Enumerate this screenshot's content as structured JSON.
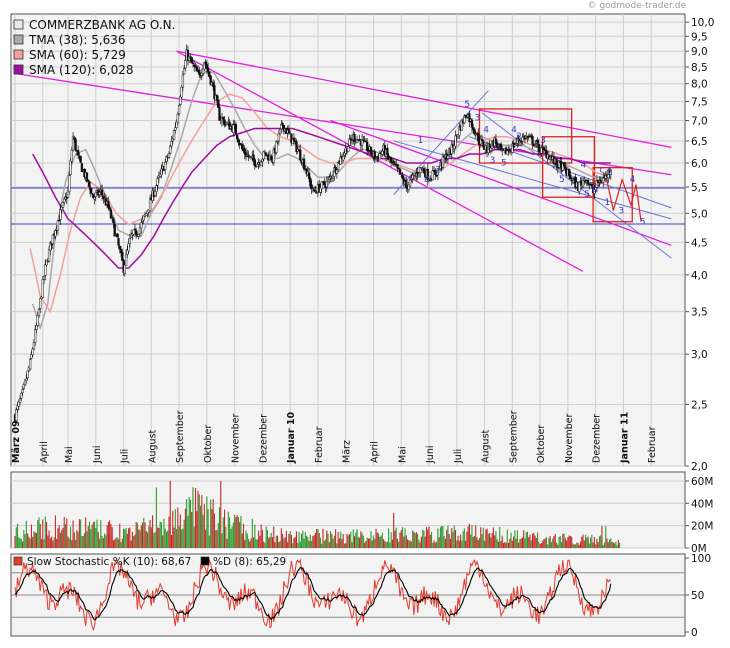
{
  "watermark": "© godmode-trader.de",
  "chart_data": [
    {
      "type": "candlestick",
      "title": "",
      "legend": [
        {
          "label": "COMMERZBANK AG O.N.",
          "swatch": "#e8e8e8"
        },
        {
          "label": "TMA (38): 5,636",
          "swatch": "#a9a9a9"
        },
        {
          "label": "SMA (60): 5,729",
          "swatch": "#f4a09a"
        },
        {
          "label": "SMA (120): 6,028",
          "swatch": "#9c0f9c"
        }
      ],
      "y_scale": "log",
      "ylim": [
        2.0,
        10.3
      ],
      "y_ticks": [
        "10,0",
        "9,5",
        "9,0",
        "8,5",
        "8,0",
        "7,5",
        "7,0",
        "6,5",
        "6,0",
        "5,5",
        "5,0",
        "4,5",
        "4,0",
        "3,5",
        "3,0",
        "2,5",
        "2,0"
      ],
      "y_tick_values": [
        10.0,
        9.5,
        9.0,
        8.5,
        8.0,
        7.5,
        7.0,
        6.5,
        6.0,
        5.5,
        5.0,
        4.5,
        4.0,
        3.5,
        3.0,
        2.5,
        2.0
      ],
      "x_labels": [
        "März 09",
        "April",
        "Mai",
        "Juni",
        "Juli",
        "August",
        "September",
        "Oktober",
        "November",
        "Dezember",
        "Januar 10",
        "Februar",
        "März",
        "April",
        "Mai",
        "Juni",
        "Juli",
        "August",
        "September",
        "Oktober",
        "November",
        "Dezember",
        "Januar 11",
        "Februar"
      ],
      "x_label_bold": [
        true,
        false,
        false,
        false,
        false,
        false,
        false,
        false,
        false,
        false,
        true,
        false,
        false,
        false,
        false,
        false,
        false,
        false,
        false,
        false,
        false,
        false,
        true,
        false
      ],
      "x_label_index": [
        0,
        22,
        42,
        64,
        86,
        108,
        130,
        152,
        174,
        196,
        218,
        240,
        262,
        284,
        306,
        328,
        350,
        372,
        394,
        416,
        438,
        460,
        482,
        504
      ],
      "close_path": [
        [
          0,
          2.4
        ],
        [
          6,
          2.6
        ],
        [
          12,
          2.9
        ],
        [
          18,
          3.4
        ],
        [
          24,
          4.1
        ],
        [
          30,
          4.6
        ],
        [
          36,
          5.0
        ],
        [
          42,
          5.4
        ],
        [
          46,
          6.6
        ],
        [
          50,
          6.1
        ],
        [
          56,
          5.7
        ],
        [
          62,
          5.3
        ],
        [
          68,
          5.4
        ],
        [
          74,
          5.1
        ],
        [
          80,
          4.6
        ],
        [
          86,
          4.1
        ],
        [
          92,
          4.6
        ],
        [
          98,
          4.7
        ],
        [
          104,
          5.0
        ],
        [
          110,
          5.4
        ],
        [
          116,
          5.8
        ],
        [
          122,
          6.2
        ],
        [
          128,
          7.0
        ],
        [
          132,
          8.0
        ],
        [
          136,
          8.9
        ],
        [
          140,
          8.6
        ],
        [
          146,
          8.2
        ],
        [
          150,
          8.7
        ],
        [
          156,
          8.0
        ],
        [
          162,
          7.1
        ],
        [
          168,
          6.9
        ],
        [
          174,
          6.8
        ],
        [
          180,
          6.3
        ],
        [
          186,
          6.1
        ],
        [
          192,
          6.0
        ],
        [
          198,
          6.2
        ],
        [
          204,
          6.1
        ],
        [
          212,
          6.9
        ],
        [
          218,
          6.6
        ],
        [
          224,
          6.3
        ],
        [
          230,
          5.9
        ],
        [
          236,
          5.4
        ],
        [
          242,
          5.5
        ],
        [
          248,
          5.6
        ],
        [
          254,
          5.9
        ],
        [
          262,
          6.3
        ],
        [
          268,
          6.6
        ],
        [
          274,
          6.5
        ],
        [
          280,
          6.3
        ],
        [
          286,
          6.1
        ],
        [
          292,
          6.3
        ],
        [
          298,
          6.0
        ],
        [
          304,
          5.8
        ],
        [
          310,
          5.5
        ],
        [
          316,
          5.7
        ],
        [
          322,
          5.9
        ],
        [
          328,
          5.7
        ],
        [
          334,
          5.8
        ],
        [
          340,
          6.1
        ],
        [
          346,
          6.3
        ],
        [
          352,
          6.8
        ],
        [
          358,
          7.2
        ],
        [
          362,
          6.9
        ],
        [
          368,
          6.5
        ],
        [
          374,
          6.3
        ],
        [
          380,
          6.5
        ],
        [
          386,
          6.2
        ],
        [
          392,
          6.3
        ],
        [
          398,
          6.5
        ],
        [
          404,
          6.6
        ],
        [
          410,
          6.5
        ],
        [
          416,
          6.3
        ],
        [
          422,
          6.2
        ],
        [
          428,
          6.0
        ],
        [
          434,
          5.9
        ],
        [
          440,
          5.7
        ],
        [
          446,
          5.5
        ],
        [
          452,
          5.7
        ],
        [
          458,
          5.4
        ],
        [
          462,
          5.6
        ],
        [
          468,
          5.7
        ],
        [
          472,
          5.9
        ]
      ],
      "tma": [
        [
          14,
          3.6
        ],
        [
          20,
          3.3
        ],
        [
          26,
          3.6
        ],
        [
          32,
          4.6
        ],
        [
          40,
          5.6
        ],
        [
          48,
          6.2
        ],
        [
          56,
          6.3
        ],
        [
          64,
          5.8
        ],
        [
          72,
          5.3
        ],
        [
          82,
          4.7
        ],
        [
          92,
          4.6
        ],
        [
          100,
          4.6
        ],
        [
          108,
          5.0
        ],
        [
          116,
          5.3
        ],
        [
          124,
          5.9
        ],
        [
          132,
          6.6
        ],
        [
          140,
          7.5
        ],
        [
          146,
          8.1
        ],
        [
          152,
          8.4
        ],
        [
          158,
          8.3
        ],
        [
          166,
          7.8
        ],
        [
          174,
          7.3
        ],
        [
          182,
          6.8
        ],
        [
          190,
          6.4
        ],
        [
          198,
          6.1
        ],
        [
          208,
          6.1
        ],
        [
          216,
          6.2
        ],
        [
          224,
          6.1
        ],
        [
          232,
          5.9
        ],
        [
          240,
          5.7
        ],
        [
          248,
          5.7
        ],
        [
          256,
          5.8
        ],
        [
          266,
          6.1
        ],
        [
          274,
          6.3
        ],
        [
          282,
          6.3
        ],
        [
          290,
          6.2
        ],
        [
          298,
          6.1
        ],
        [
          306,
          5.9
        ],
        [
          314,
          5.8
        ],
        [
          322,
          5.8
        ],
        [
          330,
          5.8
        ],
        [
          338,
          5.9
        ],
        [
          346,
          6.2
        ],
        [
          354,
          6.5
        ],
        [
          362,
          6.7
        ],
        [
          370,
          6.6
        ],
        [
          378,
          6.5
        ],
        [
          386,
          6.4
        ],
        [
          394,
          6.4
        ],
        [
          402,
          6.4
        ],
        [
          410,
          6.3
        ],
        [
          418,
          6.2
        ],
        [
          426,
          6.1
        ],
        [
          434,
          6.0
        ],
        [
          442,
          5.9
        ],
        [
          450,
          5.8
        ],
        [
          458,
          5.7
        ],
        [
          466,
          5.7
        ],
        [
          472,
          5.7
        ]
      ],
      "sma60": [
        [
          12,
          4.4
        ],
        [
          20,
          3.7
        ],
        [
          28,
          3.5
        ],
        [
          36,
          4.0
        ],
        [
          44,
          4.7
        ],
        [
          52,
          5.3
        ],
        [
          60,
          5.6
        ],
        [
          70,
          5.4
        ],
        [
          80,
          5.0
        ],
        [
          90,
          4.8
        ],
        [
          100,
          4.9
        ],
        [
          110,
          5.1
        ],
        [
          120,
          5.5
        ],
        [
          130,
          6.0
        ],
        [
          140,
          6.5
        ],
        [
          150,
          7.0
        ],
        [
          160,
          7.5
        ],
        [
          170,
          7.7
        ],
        [
          180,
          7.6
        ],
        [
          190,
          7.2
        ],
        [
          200,
          6.8
        ],
        [
          210,
          6.6
        ],
        [
          220,
          6.5
        ],
        [
          230,
          6.3
        ],
        [
          240,
          6.1
        ],
        [
          250,
          6.0
        ],
        [
          260,
          6.0
        ],
        [
          270,
          6.1
        ],
        [
          280,
          6.1
        ],
        [
          290,
          6.1
        ],
        [
          300,
          6.0
        ],
        [
          310,
          5.9
        ],
        [
          320,
          5.8
        ],
        [
          330,
          5.8
        ],
        [
          340,
          5.9
        ],
        [
          350,
          6.1
        ],
        [
          360,
          6.3
        ],
        [
          370,
          6.5
        ],
        [
          380,
          6.6
        ],
        [
          390,
          6.6
        ],
        [
          400,
          6.5
        ],
        [
          410,
          6.4
        ],
        [
          420,
          6.3
        ],
        [
          430,
          6.2
        ],
        [
          440,
          6.1
        ],
        [
          450,
          6.0
        ],
        [
          460,
          5.8
        ],
        [
          472,
          5.7
        ]
      ],
      "sma120": [
        [
          14,
          6.2
        ],
        [
          22,
          5.8
        ],
        [
          32,
          5.3
        ],
        [
          42,
          4.9
        ],
        [
          52,
          4.7
        ],
        [
          62,
          4.5
        ],
        [
          72,
          4.3
        ],
        [
          82,
          4.1
        ],
        [
          90,
          4.1
        ],
        [
          100,
          4.3
        ],
        [
          110,
          4.6
        ],
        [
          120,
          5.0
        ],
        [
          130,
          5.4
        ],
        [
          140,
          5.8
        ],
        [
          150,
          6.1
        ],
        [
          160,
          6.4
        ],
        [
          170,
          6.6
        ],
        [
          180,
          6.7
        ],
        [
          190,
          6.8
        ],
        [
          200,
          6.8
        ],
        [
          210,
          6.8
        ],
        [
          220,
          6.8
        ],
        [
          230,
          6.7
        ],
        [
          240,
          6.6
        ],
        [
          250,
          6.5
        ],
        [
          260,
          6.4
        ],
        [
          270,
          6.3
        ],
        [
          280,
          6.2
        ],
        [
          290,
          6.1
        ],
        [
          300,
          6.1
        ],
        [
          310,
          6.0
        ],
        [
          320,
          6.0
        ],
        [
          330,
          6.0
        ],
        [
          340,
          6.1
        ],
        [
          350,
          6.1
        ],
        [
          360,
          6.2
        ],
        [
          370,
          6.2
        ],
        [
          380,
          6.3
        ],
        [
          390,
          6.3
        ],
        [
          400,
          6.3
        ],
        [
          410,
          6.2
        ],
        [
          420,
          6.2
        ],
        [
          430,
          6.1
        ],
        [
          440,
          6.1
        ],
        [
          450,
          6.0
        ],
        [
          460,
          6.0
        ],
        [
          472,
          6.0
        ]
      ],
      "hlines": [
        5.48,
        4.81
      ],
      "trendlines_magenta": [
        [
          [
            0,
            8.3
          ],
          [
            520,
            5.75
          ]
        ],
        [
          [
            128,
            9.0
          ],
          [
            520,
            6.35
          ]
        ],
        [
          [
            128,
            9.0
          ],
          [
            450,
            4.05
          ]
        ],
        [
          [
            250,
            7.0
          ],
          [
            520,
            4.45
          ]
        ]
      ],
      "trendlines_blue": [
        [
          [
            300,
            6.5
          ],
          [
            520,
            4.9
          ]
        ],
        [
          [
            370,
            7.2
          ],
          [
            520,
            4.25
          ]
        ],
        [
          [
            360,
            6.6
          ],
          [
            520,
            5.1
          ]
        ],
        [
          [
            300,
            5.35
          ],
          [
            375,
            7.8
          ]
        ]
      ],
      "boxes_red": [
        [
          368,
          441,
          7.3,
          6.0
        ],
        [
          418,
          459,
          6.6,
          5.3
        ],
        [
          458,
          489,
          5.9,
          4.85
        ]
      ],
      "wave_path": [
        [
          462,
          5.5
        ],
        [
          468,
          5.75
        ],
        [
          474,
          5.05
        ],
        [
          481,
          5.65
        ],
        [
          488,
          5.15
        ],
        [
          492,
          5.55
        ],
        [
          496,
          4.85
        ]
      ],
      "wave_labels": [
        {
          "t": "5",
          "x": 356,
          "y": 7.35
        },
        {
          "t": "3",
          "x": 364,
          "y": 7.0
        },
        {
          "t": "4",
          "x": 371,
          "y": 6.7
        },
        {
          "t": "3",
          "x": 376,
          "y": 6.0
        },
        {
          "t": "4",
          "x": 393,
          "y": 6.7
        },
        {
          "t": "5",
          "x": 385,
          "y": 5.95
        },
        {
          "t": "2",
          "x": 397,
          "y": 6.55
        },
        {
          "t": "3",
          "x": 416,
          "y": 6.45
        },
        {
          "t": "5",
          "x": 431,
          "y": 5.6
        },
        {
          "t": "4",
          "x": 448,
          "y": 5.9
        },
        {
          "t": "5",
          "x": 451,
          "y": 5.3
        },
        {
          "t": "b",
          "x": 457,
          "y": 5.4
        },
        {
          "t": "c",
          "x": 463,
          "y": 5.8
        },
        {
          "t": "2",
          "x": 469,
          "y": 5.75
        },
        {
          "t": "1",
          "x": 467,
          "y": 5.15
        },
        {
          "t": "3",
          "x": 478,
          "y": 5.0
        },
        {
          "t": "4",
          "x": 487,
          "y": 5.6
        },
        {
          "t": "5",
          "x": 495,
          "y": 4.8
        },
        {
          "t": "1",
          "x": 319,
          "y": 6.45
        },
        {
          "t": "3",
          "x": 324,
          "y": 5.6
        },
        {
          "t": "2",
          "x": 333,
          "y": 5.8
        }
      ]
    },
    {
      "type": "bar",
      "title": "",
      "y_ticks": [
        "60M",
        "40M",
        "20M",
        "0M"
      ],
      "y_tick_values": [
        60,
        40,
        20,
        0
      ],
      "ylim": [
        0,
        68
      ],
      "bars_count": 480,
      "volume_profile": [
        [
          0,
          18
        ],
        [
          40,
          22
        ],
        [
          90,
          16
        ],
        [
          120,
          25
        ],
        [
          140,
          40
        ],
        [
          160,
          30
        ],
        [
          200,
          14
        ],
        [
          260,
          12
        ],
        [
          330,
          14
        ],
        [
          360,
          16
        ],
        [
          420,
          10
        ],
        [
          470,
          8
        ],
        [
          480,
          8
        ]
      ]
    },
    {
      "type": "line",
      "title": "",
      "legend": [
        {
          "label": "Slow Stochastic %K (10): 68,67",
          "swatch": "#e23b2f"
        },
        {
          "label": "%D (8): 65,29",
          "swatch": "#000000"
        }
      ],
      "y_ticks": [
        "100",
        "50",
        "0"
      ],
      "y_tick_values": [
        100,
        50,
        0
      ],
      "ylim": [
        0,
        100
      ],
      "hlines": [
        80,
        50,
        20
      ],
      "k_last": 68.67,
      "d_last": 65.29
    }
  ]
}
